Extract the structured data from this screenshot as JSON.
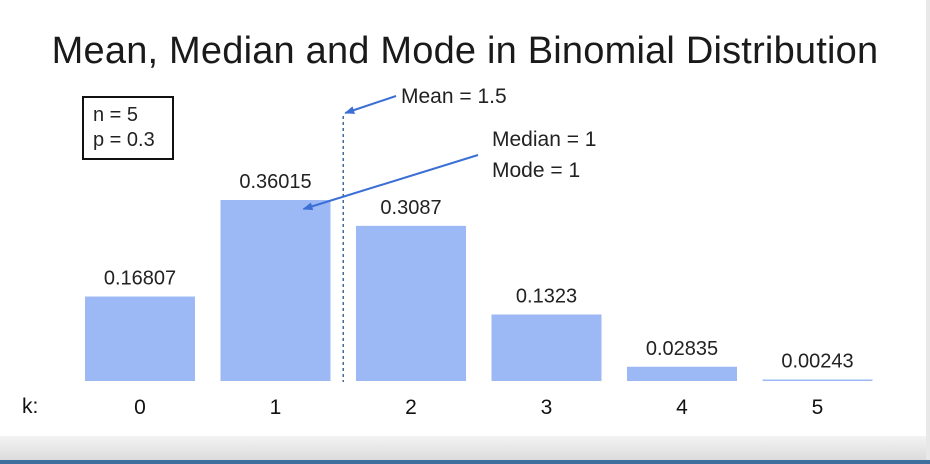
{
  "slide": {
    "title": "Mean, Median and Mode in Binomial Distribution",
    "params": [
      "n = 5",
      "p = 0.3"
    ],
    "x_axis_label": "k:"
  },
  "chart_data": {
    "type": "bar",
    "categories": [
      "0",
      "1",
      "2",
      "3",
      "4",
      "5"
    ],
    "values": [
      0.16807,
      0.36015,
      0.3087,
      0.1323,
      0.02835,
      0.00243
    ],
    "value_labels": [
      "0.16807",
      "0.36015",
      "0.3087",
      "0.1323",
      "0.02835",
      "0.00243"
    ],
    "title": "Mean, Median and Mode in Binomial Distribution",
    "xlabel": "k:",
    "ylabel": "",
    "ylim": [
      0,
      0.36015
    ],
    "grid": false,
    "bar_color": "#9db9f5",
    "annotations": {
      "mean": {
        "text": "Mean = 1.5",
        "x": 1.5
      },
      "median_mode": {
        "lines": [
          "Median = 1",
          "Mode = 1"
        ],
        "x": 1
      }
    },
    "annotation_color": "#3b6fd6",
    "mean_line_color": "#3e6b9a"
  }
}
